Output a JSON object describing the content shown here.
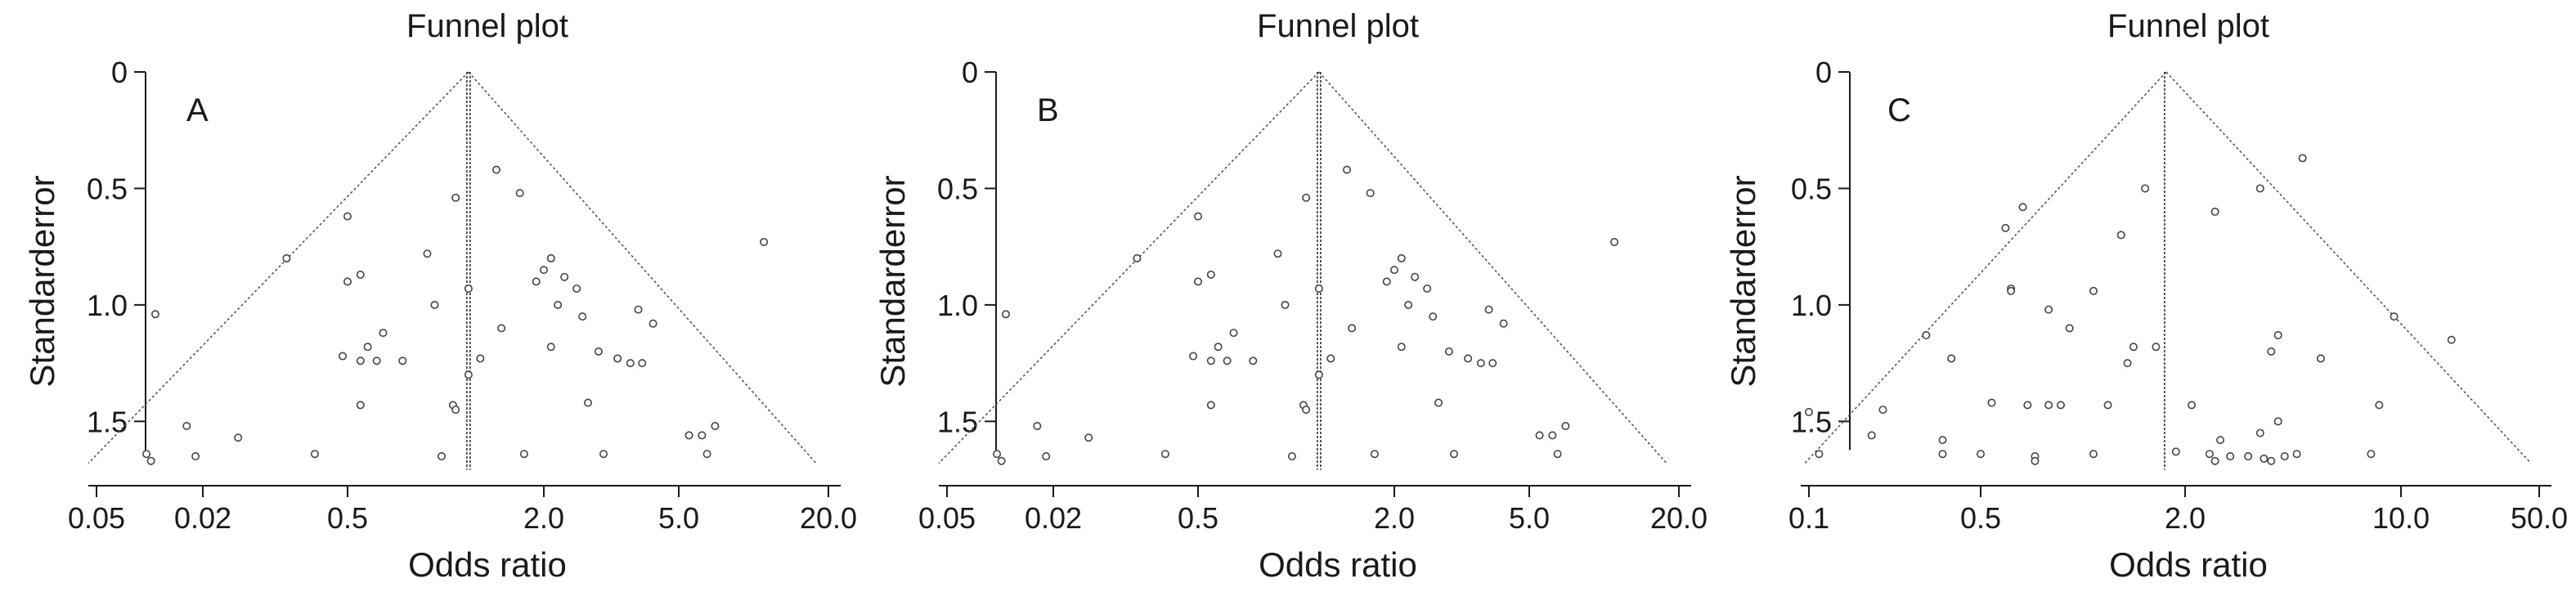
{
  "chart_data": [
    {
      "type": "scatter",
      "panel_label": "A",
      "title": "Funnel plot",
      "xlabel": "Odds ratio",
      "ylabel": "Standarderror",
      "x_tick_labels": [
        "0.05",
        "0.02",
        "0.5",
        "2.0",
        "5.0",
        "20.0"
      ],
      "y_ticks": [
        0,
        0.5,
        1.0,
        1.5
      ],
      "y_tick_labels": [
        "0",
        "0.5",
        "1.0",
        "1.5"
      ],
      "ylim": [
        0,
        1.72
      ],
      "funnel_apex_x": 1.2,
      "points": [
        {
          "x": 1.45,
          "y": 0.42
        },
        {
          "x": 1.7,
          "y": 0.52
        },
        {
          "x": 1.1,
          "y": 0.54
        },
        {
          "x": 0.5,
          "y": 0.62
        },
        {
          "x": 11.0,
          "y": 0.73
        },
        {
          "x": 0.3,
          "y": 0.8
        },
        {
          "x": 0.9,
          "y": 0.78
        },
        {
          "x": 2.1,
          "y": 0.8
        },
        {
          "x": 2.0,
          "y": 0.85
        },
        {
          "x": 0.55,
          "y": 0.87
        },
        {
          "x": 0.5,
          "y": 0.9
        },
        {
          "x": 2.3,
          "y": 0.88
        },
        {
          "x": 1.9,
          "y": 0.9
        },
        {
          "x": 1.2,
          "y": 0.93
        },
        {
          "x": 2.5,
          "y": 0.93
        },
        {
          "x": 2.2,
          "y": 1.0
        },
        {
          "x": 0.95,
          "y": 1.0
        },
        {
          "x": 3.8,
          "y": 1.02
        },
        {
          "x": 0.1,
          "y": 1.04
        },
        {
          "x": 2.6,
          "y": 1.05
        },
        {
          "x": 4.2,
          "y": 1.08
        },
        {
          "x": 1.5,
          "y": 1.1
        },
        {
          "x": 0.65,
          "y": 1.12
        },
        {
          "x": 0.58,
          "y": 1.18
        },
        {
          "x": 2.1,
          "y": 1.18
        },
        {
          "x": 2.9,
          "y": 1.2
        },
        {
          "x": 0.48,
          "y": 1.22
        },
        {
          "x": 1.3,
          "y": 1.23
        },
        {
          "x": 3.3,
          "y": 1.23
        },
        {
          "x": 0.55,
          "y": 1.24
        },
        {
          "x": 0.62,
          "y": 1.24
        },
        {
          "x": 0.75,
          "y": 1.24
        },
        {
          "x": 3.6,
          "y": 1.25
        },
        {
          "x": 3.9,
          "y": 1.25
        },
        {
          "x": 1.2,
          "y": 1.3
        },
        {
          "x": 2.7,
          "y": 1.42
        },
        {
          "x": 1.08,
          "y": 1.43
        },
        {
          "x": 0.55,
          "y": 1.43
        },
        {
          "x": 1.1,
          "y": 1.45
        },
        {
          "x": 0.13,
          "y": 1.52
        },
        {
          "x": 7.0,
          "y": 1.52
        },
        {
          "x": 0.2,
          "y": 1.57
        },
        {
          "x": 5.5,
          "y": 1.56
        },
        {
          "x": 6.2,
          "y": 1.56
        },
        {
          "x": 0.09,
          "y": 1.64
        },
        {
          "x": 0.38,
          "y": 1.64
        },
        {
          "x": 1.0,
          "y": 1.65
        },
        {
          "x": 1.75,
          "y": 1.64
        },
        {
          "x": 3.0,
          "y": 1.64
        },
        {
          "x": 6.5,
          "y": 1.64
        },
        {
          "x": 0.095,
          "y": 1.67
        },
        {
          "x": 0.14,
          "y": 1.65
        }
      ]
    },
    {
      "type": "scatter",
      "panel_label": "B",
      "title": "Funnel plot",
      "xlabel": "Odds ratio",
      "ylabel": "Standarderror",
      "x_tick_labels": [
        "0.05",
        "0.02",
        "0.5",
        "2.0",
        "5.0",
        "20.0"
      ],
      "y_ticks": [
        0,
        0.5,
        1.0,
        1.5
      ],
      "y_tick_labels": [
        "0",
        "0.5",
        "1.0",
        "1.5"
      ],
      "ylim": [
        0,
        1.72
      ],
      "funnel_apex_x": 1.2,
      "points": [
        {
          "x": 1.45,
          "y": 0.42
        },
        {
          "x": 1.7,
          "y": 0.52
        },
        {
          "x": 1.1,
          "y": 0.54
        },
        {
          "x": 0.5,
          "y": 0.62
        },
        {
          "x": 11.0,
          "y": 0.73
        },
        {
          "x": 0.3,
          "y": 0.8
        },
        {
          "x": 0.9,
          "y": 0.78
        },
        {
          "x": 2.1,
          "y": 0.8
        },
        {
          "x": 2.0,
          "y": 0.85
        },
        {
          "x": 0.55,
          "y": 0.87
        },
        {
          "x": 0.5,
          "y": 0.9
        },
        {
          "x": 2.3,
          "y": 0.88
        },
        {
          "x": 1.9,
          "y": 0.9
        },
        {
          "x": 1.2,
          "y": 0.93
        },
        {
          "x": 2.5,
          "y": 0.93
        },
        {
          "x": 2.2,
          "y": 1.0
        },
        {
          "x": 0.95,
          "y": 1.0
        },
        {
          "x": 3.8,
          "y": 1.02
        },
        {
          "x": 0.1,
          "y": 1.04
        },
        {
          "x": 2.6,
          "y": 1.05
        },
        {
          "x": 4.2,
          "y": 1.08
        },
        {
          "x": 1.5,
          "y": 1.1
        },
        {
          "x": 0.65,
          "y": 1.12
        },
        {
          "x": 0.58,
          "y": 1.18
        },
        {
          "x": 2.1,
          "y": 1.18
        },
        {
          "x": 2.9,
          "y": 1.2
        },
        {
          "x": 0.48,
          "y": 1.22
        },
        {
          "x": 1.3,
          "y": 1.23
        },
        {
          "x": 3.3,
          "y": 1.23
        },
        {
          "x": 0.55,
          "y": 1.24
        },
        {
          "x": 0.62,
          "y": 1.24
        },
        {
          "x": 0.75,
          "y": 1.24
        },
        {
          "x": 3.6,
          "y": 1.25
        },
        {
          "x": 3.9,
          "y": 1.25
        },
        {
          "x": 1.2,
          "y": 1.3
        },
        {
          "x": 2.7,
          "y": 1.42
        },
        {
          "x": 1.08,
          "y": 1.43
        },
        {
          "x": 0.55,
          "y": 1.43
        },
        {
          "x": 1.1,
          "y": 1.45
        },
        {
          "x": 0.13,
          "y": 1.52
        },
        {
          "x": 7.0,
          "y": 1.52
        },
        {
          "x": 0.2,
          "y": 1.57
        },
        {
          "x": 5.5,
          "y": 1.56
        },
        {
          "x": 6.2,
          "y": 1.56
        },
        {
          "x": 0.09,
          "y": 1.64
        },
        {
          "x": 0.38,
          "y": 1.64
        },
        {
          "x": 1.0,
          "y": 1.65
        },
        {
          "x": 1.75,
          "y": 1.64
        },
        {
          "x": 3.0,
          "y": 1.64
        },
        {
          "x": 6.5,
          "y": 1.64
        },
        {
          "x": 0.095,
          "y": 1.67
        },
        {
          "x": 0.14,
          "y": 1.65
        }
      ]
    },
    {
      "type": "scatter",
      "panel_label": "C",
      "title": "Funnel plot",
      "xlabel": "Odds ratio",
      "ylabel": "Standarderror",
      "x_tick_labels": [
        "0.1",
        "0.5",
        "2.0",
        "10.0",
        "50.0"
      ],
      "y_ticks": [
        0,
        0.5,
        1.0,
        1.5
      ],
      "y_tick_labels": [
        "0",
        "0.5",
        "1.0",
        "1.5"
      ],
      "ylim": [
        0,
        1.72
      ],
      "funnel_apex_x": 1.8,
      "points": [
        {
          "x": 4.8,
          "y": 0.37
        },
        {
          "x": 1.6,
          "y": 0.5
        },
        {
          "x": 3.5,
          "y": 0.5
        },
        {
          "x": 0.72,
          "y": 0.58
        },
        {
          "x": 2.5,
          "y": 0.6
        },
        {
          "x": 0.62,
          "y": 0.67
        },
        {
          "x": 1.4,
          "y": 0.7
        },
        {
          "x": 0.65,
          "y": 0.93
        },
        {
          "x": 0.65,
          "y": 0.94
        },
        {
          "x": 1.2,
          "y": 0.94
        },
        {
          "x": 0.9,
          "y": 1.02
        },
        {
          "x": 9.5,
          "y": 1.05
        },
        {
          "x": 1.05,
          "y": 1.1
        },
        {
          "x": 0.3,
          "y": 1.13
        },
        {
          "x": 4.0,
          "y": 1.13
        },
        {
          "x": 18.0,
          "y": 1.15
        },
        {
          "x": 1.5,
          "y": 1.18
        },
        {
          "x": 1.7,
          "y": 1.18
        },
        {
          "x": 3.8,
          "y": 1.2
        },
        {
          "x": 0.38,
          "y": 1.23
        },
        {
          "x": 5.5,
          "y": 1.23
        },
        {
          "x": 1.45,
          "y": 1.25
        },
        {
          "x": 0.55,
          "y": 1.42
        },
        {
          "x": 0.75,
          "y": 1.43
        },
        {
          "x": 0.9,
          "y": 1.43
        },
        {
          "x": 1.0,
          "y": 1.43
        },
        {
          "x": 1.3,
          "y": 1.43
        },
        {
          "x": 2.1,
          "y": 1.43
        },
        {
          "x": 8.5,
          "y": 1.43
        },
        {
          "x": 0.1,
          "y": 1.46
        },
        {
          "x": 0.2,
          "y": 1.45
        },
        {
          "x": 4.0,
          "y": 1.5
        },
        {
          "x": 3.5,
          "y": 1.55
        },
        {
          "x": 0.18,
          "y": 1.56
        },
        {
          "x": 0.35,
          "y": 1.58
        },
        {
          "x": 2.6,
          "y": 1.58
        },
        {
          "x": 0.11,
          "y": 1.64
        },
        {
          "x": 0.35,
          "y": 1.64
        },
        {
          "x": 0.5,
          "y": 1.64
        },
        {
          "x": 0.8,
          "y": 1.65
        },
        {
          "x": 1.2,
          "y": 1.64
        },
        {
          "x": 1.9,
          "y": 1.63
        },
        {
          "x": 2.4,
          "y": 1.64
        },
        {
          "x": 2.8,
          "y": 1.65
        },
        {
          "x": 3.2,
          "y": 1.65
        },
        {
          "x": 3.6,
          "y": 1.66
        },
        {
          "x": 4.2,
          "y": 1.65
        },
        {
          "x": 4.6,
          "y": 1.64
        },
        {
          "x": 8.0,
          "y": 1.64
        },
        {
          "x": 0.8,
          "y": 1.67
        },
        {
          "x": 2.5,
          "y": 1.67
        },
        {
          "x": 3.8,
          "y": 1.67
        }
      ]
    }
  ]
}
